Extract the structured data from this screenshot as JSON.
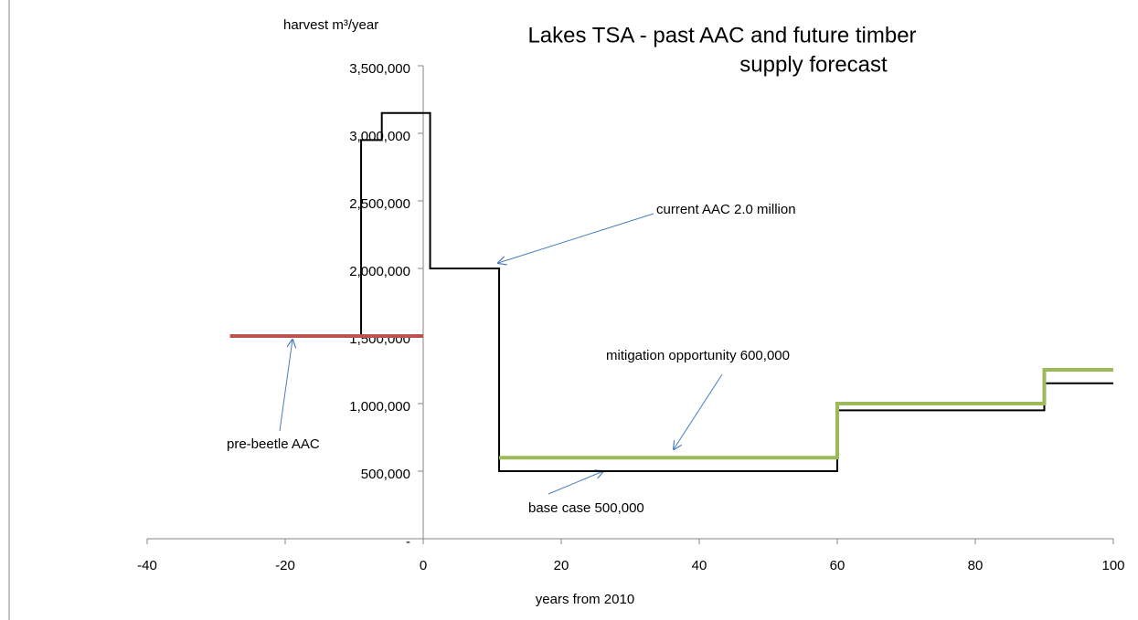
{
  "chart_data": {
    "type": "line",
    "title": [
      "Lakes TSA - past  AAC and future timber",
      "supply forecast"
    ],
    "y_label": "harvest m³/year",
    "x_label": "years from 2010",
    "xlim": [
      -40,
      100
    ],
    "xticks": [
      -40,
      -20,
      0,
      20,
      40,
      60,
      80,
      100
    ],
    "ylim": [
      0,
      3500000
    ],
    "yticks": [
      {
        "value": 0,
        "label": "-"
      },
      {
        "value": 500000,
        "label": "500,000"
      },
      {
        "value": 1000000,
        "label": "1,000,000"
      },
      {
        "value": 1500000,
        "label": "1,500,000"
      },
      {
        "value": 2000000,
        "label": "2,000,000"
      },
      {
        "value": 2500000,
        "label": "2,500,000"
      },
      {
        "value": 3000000,
        "label": "3,000,000"
      },
      {
        "value": 3500000,
        "label": "3,500,000"
      }
    ],
    "series": [
      {
        "color": "#000000",
        "width": 2,
        "x": [
          -9,
          -9,
          -6,
          -6,
          1,
          1,
          11,
          11,
          60,
          60,
          90,
          90,
          100
        ],
        "values": [
          1500000,
          2950000,
          2950000,
          3150000,
          3150000,
          2000000,
          2000000,
          500000,
          500000,
          950000,
          950000,
          1150000,
          1150000
        ]
      },
      {
        "color": "#c0504d",
        "width": 4,
        "x": [
          -28,
          0
        ],
        "values": [
          1500000,
          1500000
        ]
      },
      {
        "color": "#9bbb59",
        "width": 4,
        "x": [
          11,
          60,
          60,
          90,
          90,
          100
        ],
        "values": [
          600000,
          600000,
          1000000,
          1000000,
          1250000,
          1250000
        ]
      }
    ],
    "annotations": [
      "current AAC 2.0 million",
      "mitigation opportunity 600,000",
      "base case 500,000",
      "pre-beetle AAC"
    ]
  }
}
